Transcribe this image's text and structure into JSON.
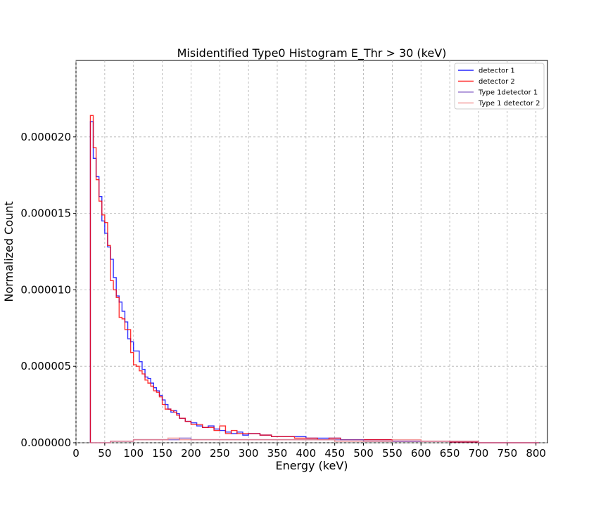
{
  "chart_data": {
    "type": "histogram-step",
    "title": "Misidentified Type0 Histogram E_Thr > 30 (keV)",
    "xlabel": "Energy (keV)",
    "ylabel": "Normalized Count",
    "xlim": [
      0,
      820
    ],
    "ylim": [
      0,
      2.5e-05
    ],
    "xticks": [
      0,
      50,
      100,
      150,
      200,
      250,
      300,
      350,
      400,
      450,
      500,
      550,
      600,
      650,
      700,
      750,
      800
    ],
    "yticks": [
      "0.000000",
      "0.000005",
      "0.000010",
      "0.000015",
      "0.000020"
    ],
    "ytick_values": [
      0,
      5e-06,
      1e-05,
      1.5e-05,
      2e-05
    ],
    "grid": true,
    "legend_position": "top-right",
    "bin_width": 5,
    "series": [
      {
        "name": "detector 1",
        "color": "#0000ff",
        "x": [
          25,
          30,
          35,
          40,
          45,
          50,
          55,
          60,
          65,
          70,
          75,
          80,
          85,
          90,
          95,
          100,
          105,
          110,
          115,
          120,
          125,
          130,
          135,
          140,
          145,
          150,
          155,
          160,
          165,
          170,
          175,
          180,
          190,
          200,
          210,
          220,
          230,
          240,
          250,
          260,
          270,
          280,
          290,
          300,
          320,
          340,
          360,
          380,
          400,
          420,
          440,
          460,
          480,
          500,
          550,
          600,
          650,
          700,
          800
        ],
        "values": [
          2.1e-05,
          1.86e-05,
          1.74e-05,
          1.61e-05,
          1.45e-05,
          1.37e-05,
          1.28e-05,
          1.2e-05,
          1.08e-05,
          9.6e-06,
          9.2e-06,
          8.6e-06,
          7.9e-06,
          6.8e-06,
          6.6e-06,
          6e-06,
          6e-06,
          5.3e-06,
          4.8e-06,
          4.3e-06,
          4.2e-06,
          3.9e-06,
          3.6e-06,
          3.4e-06,
          3.1e-06,
          2.8e-06,
          2.5e-06,
          2.2e-06,
          2e-06,
          2.1e-06,
          1.9e-06,
          1.6e-06,
          1.4e-06,
          1.3e-06,
          1.1e-06,
          1e-06,
          1.1e-06,
          9e-07,
          8e-07,
          7e-07,
          6e-07,
          7e-07,
          5e-07,
          6e-07,
          5e-07,
          4e-07,
          4e-07,
          4e-07,
          3e-07,
          3e-07,
          3e-07,
          2e-07,
          2e-07,
          2e-07,
          1e-07,
          1e-07,
          5e-08,
          0.0,
          0.0
        ]
      },
      {
        "name": "detector 2",
        "color": "#ff0000",
        "x": [
          25,
          30,
          35,
          40,
          45,
          50,
          55,
          60,
          65,
          70,
          75,
          80,
          85,
          90,
          95,
          100,
          105,
          110,
          115,
          120,
          125,
          130,
          135,
          140,
          145,
          150,
          155,
          160,
          165,
          170,
          175,
          180,
          190,
          200,
          210,
          220,
          230,
          240,
          250,
          260,
          270,
          280,
          290,
          300,
          320,
          340,
          360,
          380,
          400,
          420,
          440,
          460,
          480,
          500,
          550,
          600,
          650,
          700,
          800
        ],
        "values": [
          2.14e-05,
          1.93e-05,
          1.72e-05,
          1.58e-05,
          1.49e-05,
          1.44e-05,
          1.29e-05,
          1.06e-05,
          1e-05,
          9.5e-06,
          8.2e-06,
          8.1e-06,
          7.4e-06,
          7.4e-06,
          5.9e-06,
          5.1e-06,
          5e-06,
          4.7e-06,
          4.5e-06,
          4.1e-06,
          3.9e-06,
          3.7e-06,
          3.4e-06,
          3.3e-06,
          3e-06,
          2.5e-06,
          2.2e-06,
          2.2e-06,
          2.1e-06,
          2e-06,
          1.8e-06,
          1.6e-06,
          1.4e-06,
          1.2e-06,
          1.2e-06,
          1e-06,
          1e-06,
          8e-07,
          1.1e-06,
          6e-07,
          8e-07,
          6e-07,
          6e-07,
          6e-07,
          5e-07,
          4e-07,
          4e-07,
          3e-07,
          3e-07,
          2e-07,
          3e-07,
          2e-07,
          2e-07,
          2e-07,
          1e-07,
          1e-07,
          5e-08,
          0.0,
          0.0
        ]
      },
      {
        "name": "Type 1detector 1",
        "color": "#7b52c1",
        "x": [
          25,
          60,
          80,
          100,
          120,
          140,
          160,
          180,
          200,
          250,
          300,
          350,
          400,
          450,
          500,
          550,
          600,
          650,
          700,
          800
        ],
        "values": [
          0.0,
          1e-07,
          1e-07,
          2e-07,
          2e-07,
          2e-07,
          2e-07,
          3e-07,
          2e-07,
          2e-07,
          2e-07,
          2e-07,
          2e-07,
          2e-07,
          1e-07,
          1e-07,
          1e-07,
          1e-07,
          0.0,
          0.0
        ]
      },
      {
        "name": "Type 1 detector 2",
        "color": "#f08080",
        "x": [
          25,
          60,
          80,
          100,
          120,
          140,
          160,
          180,
          200,
          250,
          300,
          350,
          400,
          450,
          500,
          550,
          600,
          650,
          700,
          800
        ],
        "values": [
          0.0,
          1e-07,
          1e-07,
          2e-07,
          2e-07,
          2e-07,
          3e-07,
          2e-07,
          2e-07,
          2e-07,
          2e-07,
          2e-07,
          2e-07,
          1e-07,
          1e-07,
          2e-07,
          1e-07,
          1e-07,
          0.0,
          0.0
        ]
      }
    ]
  }
}
